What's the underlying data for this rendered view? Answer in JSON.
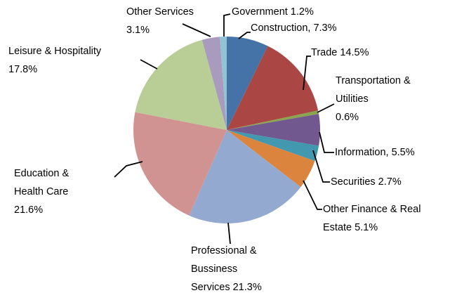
{
  "chart_data": {
    "type": "pie",
    "categories": [
      "Construction,",
      "Trade",
      "Transportation & Utilities",
      "Information,",
      "Securities",
      "Other Finance & Real Estate",
      "Professional & Bussiness Services",
      "Education & Health Care",
      "Leisure & Hospitality",
      "Other Services",
      "Government"
    ],
    "values": [
      7.3,
      14.5,
      0.6,
      5.5,
      2.7,
      5.1,
      21.3,
      21.6,
      17.8,
      3.1,
      1.2
    ],
    "value_labels": [
      "7.3%",
      "14.5%",
      "0.6%",
      "5.5%",
      "2.7%",
      "5.1%",
      "21.3%",
      "21.6%",
      "17.8%",
      "3.1%",
      "1.2%"
    ],
    "colors": [
      "#4572a7",
      "#aa4643",
      "#89a54e",
      "#71588f",
      "#4198af",
      "#db843d",
      "#93a9cf",
      "#d19392",
      "#b9cd96",
      "#a99bbd",
      "#91c3d5"
    ]
  }
}
